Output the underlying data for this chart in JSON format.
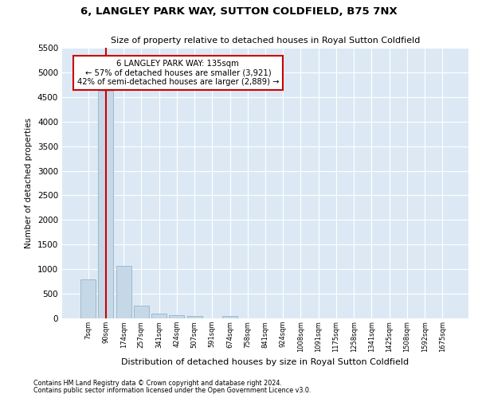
{
  "title": "6, LANGLEY PARK WAY, SUTTON COLDFIELD, B75 7NX",
  "subtitle": "Size of property relative to detached houses in Royal Sutton Coldfield",
  "xlabel": "Distribution of detached houses by size in Royal Sutton Coldfield",
  "ylabel": "Number of detached properties",
  "footnote1": "Contains HM Land Registry data © Crown copyright and database right 2024.",
  "footnote2": "Contains public sector information licensed under the Open Government Licence v3.0.",
  "bar_color": "#c5d8e8",
  "bar_edge_color": "#a0b8cc",
  "vline_color": "#cc0000",
  "background_color": "#dce9f5",
  "annotation_box_color": "#cc0000",
  "annotation_line1": "6 LANGLEY PARK WAY: 135sqm",
  "annotation_line2": "← 57% of detached houses are smaller (3,921)",
  "annotation_line3": "42% of semi-detached houses are larger (2,889) →",
  "categories": [
    "7sqm",
    "90sqm",
    "174sqm",
    "257sqm",
    "341sqm",
    "424sqm",
    "507sqm",
    "591sqm",
    "674sqm",
    "758sqm",
    "841sqm",
    "924sqm",
    "1008sqm",
    "1091sqm",
    "1175sqm",
    "1258sqm",
    "1341sqm",
    "1425sqm",
    "1508sqm",
    "1592sqm",
    "1675sqm"
  ],
  "values": [
    800,
    4620,
    1060,
    260,
    100,
    70,
    50,
    0,
    50,
    0,
    0,
    0,
    0,
    0,
    0,
    0,
    0,
    0,
    0,
    0,
    0
  ],
  "ylim": [
    0,
    5500
  ],
  "yticks": [
    0,
    500,
    1000,
    1500,
    2000,
    2500,
    3000,
    3500,
    4000,
    4500,
    5000,
    5500
  ],
  "vline_x_index": 1,
  "fig_width": 6.0,
  "fig_height": 5.0,
  "dpi": 100
}
